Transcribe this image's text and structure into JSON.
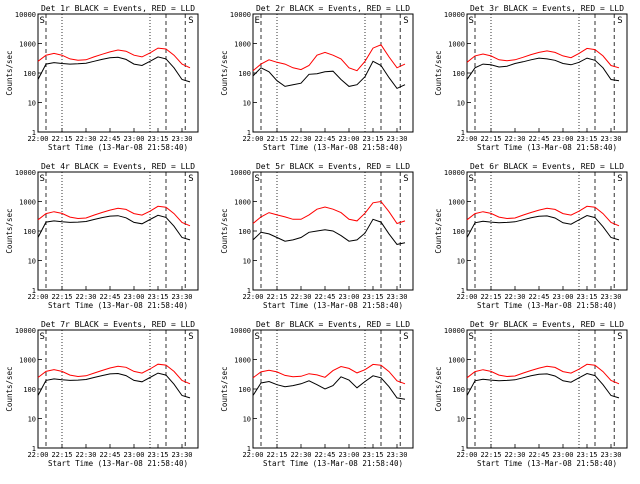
{
  "figure": {
    "xlabel": "Start Time (13-Mar-08 21:58:40)",
    "ylabel": "Counts/sec",
    "x_tick_labels": [
      "22:00",
      "22:15",
      "22:30",
      "22:45",
      "23:00",
      "23:15",
      "23:30"
    ],
    "y_tick_labels": [
      "1",
      "10",
      "100",
      "1000",
      "10000"
    ],
    "colors": {
      "events": "#000000",
      "lld": "#ff0000"
    }
  },
  "chart_data": [
    {
      "type": "line",
      "title": "Det 1r BLACK = Events, RED = LLD",
      "x": [
        0,
        5,
        10,
        15,
        20,
        25,
        30,
        35,
        40,
        45,
        50,
        55,
        60,
        65,
        70,
        75,
        80,
        85,
        90,
        95
      ],
      "series": [
        {
          "values": [
            60,
            200,
            225,
            210,
            200,
            205,
            215,
            250,
            290,
            330,
            340,
            290,
            200,
            180,
            250,
            350,
            300,
            150,
            60,
            50
          ]
        },
        {
          "values": [
            250,
            400,
            460,
            400,
            300,
            270,
            280,
            350,
            430,
            520,
            600,
            550,
            400,
            350,
            480,
            700,
            650,
            400,
            200,
            150
          ]
        }
      ],
      "xlim": [
        0,
        100
      ],
      "ylim": [
        1,
        10000
      ],
      "yscale": "log",
      "x_ticks": [
        0,
        15,
        30,
        45,
        60,
        75,
        90
      ],
      "y_ticks": [
        1,
        10,
        100,
        1000,
        10000
      ],
      "markers": [
        "S",
        "S"
      ],
      "marker_x": [
        0.3,
        93.3
      ]
    },
    {
      "type": "line",
      "title": "Det 2r BLACK = Events, RED = LLD",
      "x": [
        0,
        5,
        10,
        15,
        20,
        25,
        30,
        35,
        40,
        45,
        50,
        55,
        60,
        65,
        70,
        75,
        80,
        85,
        90,
        95
      ],
      "series": [
        {
          "values": [
            80,
            150,
            110,
            55,
            35,
            40,
            45,
            90,
            95,
            110,
            115,
            60,
            35,
            40,
            75,
            250,
            180,
            70,
            30,
            40
          ]
        },
        {
          "values": [
            120,
            200,
            280,
            230,
            200,
            150,
            130,
            180,
            400,
            500,
            400,
            300,
            150,
            120,
            250,
            700,
            900,
            350,
            150,
            200
          ]
        }
      ],
      "xlim": [
        0,
        100
      ],
      "ylim": [
        1,
        10000
      ],
      "yscale": "log",
      "x_ticks": [
        0,
        15,
        30,
        45,
        60,
        75,
        90
      ],
      "y_ticks": [
        1,
        10,
        100,
        1000,
        10000
      ],
      "markers": [
        "E",
        "S"
      ],
      "marker_x": [
        0.3,
        93.3
      ]
    },
    {
      "type": "line",
      "title": "Det 3r BLACK = Events, RED = LLD",
      "x": [
        0,
        5,
        10,
        15,
        20,
        25,
        30,
        35,
        40,
        45,
        50,
        55,
        60,
        65,
        70,
        75,
        80,
        85,
        90,
        95
      ],
      "series": [
        {
          "values": [
            60,
            150,
            200,
            190,
            160,
            170,
            210,
            240,
            280,
            320,
            300,
            270,
            210,
            190,
            230,
            320,
            270,
            150,
            60,
            55
          ]
        },
        {
          "values": [
            230,
            380,
            440,
            380,
            280,
            260,
            280,
            340,
            420,
            500,
            560,
            500,
            380,
            330,
            460,
            680,
            620,
            380,
            180,
            150
          ]
        }
      ],
      "xlim": [
        0,
        100
      ],
      "ylim": [
        1,
        10000
      ],
      "yscale": "log",
      "x_ticks": [
        0,
        15,
        30,
        45,
        60,
        75,
        90
      ],
      "y_ticks": [
        1,
        10,
        100,
        1000,
        10000
      ],
      "markers": [
        "S",
        "S"
      ],
      "marker_x": [
        0.3,
        93.3
      ]
    },
    {
      "type": "line",
      "title": "Det 4r BLACK = Events, RED = LLD",
      "x": [
        0,
        5,
        10,
        15,
        20,
        25,
        30,
        35,
        40,
        45,
        50,
        55,
        60,
        65,
        70,
        75,
        80,
        85,
        90,
        95
      ],
      "series": [
        {
          "values": [
            60,
            200,
            220,
            205,
            195,
            200,
            210,
            245,
            285,
            320,
            330,
            280,
            195,
            175,
            245,
            340,
            290,
            145,
            60,
            50
          ]
        },
        {
          "values": [
            240,
            390,
            450,
            395,
            295,
            265,
            275,
            345,
            425,
            510,
            590,
            540,
            390,
            345,
            470,
            690,
            640,
            390,
            195,
            150
          ]
        }
      ],
      "xlim": [
        0,
        100
      ],
      "ylim": [
        1,
        10000
      ],
      "yscale": "log",
      "x_ticks": [
        0,
        15,
        30,
        45,
        60,
        75,
        90
      ],
      "y_ticks": [
        1,
        10,
        100,
        1000,
        10000
      ],
      "markers": [
        "S",
        "S"
      ],
      "marker_x": [
        0.3,
        93.3
      ]
    },
    {
      "type": "line",
      "title": "Det 5r BLACK = Events, RED = LLD",
      "x": [
        0,
        5,
        10,
        15,
        20,
        25,
        30,
        35,
        40,
        45,
        50,
        55,
        60,
        65,
        70,
        75,
        80,
        85,
        90,
        95
      ],
      "series": [
        {
          "values": [
            50,
            90,
            80,
            60,
            45,
            50,
            60,
            90,
            100,
            110,
            100,
            70,
            45,
            50,
            85,
            250,
            200,
            80,
            35,
            40
          ]
        },
        {
          "values": [
            180,
            300,
            420,
            350,
            300,
            250,
            250,
            350,
            550,
            650,
            550,
            420,
            250,
            220,
            400,
            900,
            1000,
            450,
            180,
            220
          ]
        }
      ],
      "xlim": [
        0,
        100
      ],
      "ylim": [
        1,
        10000
      ],
      "yscale": "log",
      "x_ticks": [
        0,
        15,
        30,
        45,
        60,
        75,
        90
      ],
      "y_ticks": [
        1,
        10,
        100,
        1000,
        10000
      ],
      "markers": [
        "S",
        "S"
      ],
      "marker_x": [
        0.3,
        93.3
      ]
    },
    {
      "type": "line",
      "title": "Det 6r BLACK = Events, RED = LLD",
      "x": [
        0,
        5,
        10,
        15,
        20,
        25,
        30,
        35,
        40,
        45,
        50,
        55,
        60,
        65,
        70,
        75,
        80,
        85,
        90,
        95
      ],
      "series": [
        {
          "values": [
            60,
            190,
            215,
            200,
            190,
            195,
            205,
            240,
            280,
            315,
            325,
            275,
            190,
            170,
            240,
            335,
            285,
            140,
            60,
            50
          ]
        },
        {
          "values": [
            240,
            390,
            450,
            395,
            295,
            265,
            275,
            345,
            425,
            510,
            590,
            540,
            390,
            345,
            470,
            690,
            640,
            390,
            195,
            150
          ]
        }
      ],
      "xlim": [
        0,
        100
      ],
      "ylim": [
        1,
        10000
      ],
      "yscale": "log",
      "x_ticks": [
        0,
        15,
        30,
        45,
        60,
        75,
        90
      ],
      "y_ticks": [
        1,
        10,
        100,
        1000,
        10000
      ],
      "markers": [
        "S",
        "S"
      ],
      "marker_x": [
        0.3,
        93.3
      ]
    },
    {
      "type": "line",
      "title": "Det 7r BLACK = Events, RED = LLD",
      "x": [
        0,
        5,
        10,
        15,
        20,
        25,
        30,
        35,
        40,
        45,
        50,
        55,
        60,
        65,
        70,
        75,
        80,
        85,
        90,
        95
      ],
      "series": [
        {
          "values": [
            60,
            195,
            220,
            205,
            195,
            200,
            210,
            245,
            285,
            325,
            335,
            285,
            195,
            175,
            245,
            345,
            295,
            145,
            60,
            50
          ]
        },
        {
          "values": [
            245,
            395,
            455,
            395,
            295,
            265,
            280,
            345,
            425,
            515,
            595,
            545,
            395,
            345,
            475,
            695,
            645,
            395,
            195,
            150
          ]
        }
      ],
      "xlim": [
        0,
        100
      ],
      "ylim": [
        1,
        10000
      ],
      "yscale": "log",
      "x_ticks": [
        0,
        15,
        30,
        45,
        60,
        75,
        90
      ],
      "y_ticks": [
        1,
        10,
        100,
        1000,
        10000
      ],
      "markers": [
        "S",
        "S"
      ],
      "marker_x": [
        0.3,
        93.3
      ]
    },
    {
      "type": "line",
      "title": "Det 8r BLACK = Events, RED = LLD",
      "x": [
        0,
        5,
        10,
        15,
        20,
        25,
        30,
        35,
        40,
        45,
        50,
        55,
        60,
        65,
        70,
        75,
        80,
        85,
        90,
        95
      ],
      "series": [
        {
          "values": [
            60,
            160,
            180,
            140,
            120,
            130,
            150,
            190,
            140,
            100,
            130,
            260,
            200,
            110,
            180,
            280,
            240,
            120,
            50,
            45
          ]
        },
        {
          "values": [
            240,
            380,
            430,
            380,
            290,
            260,
            270,
            330,
            300,
            250,
            420,
            580,
            500,
            350,
            450,
            680,
            640,
            390,
            190,
            150
          ]
        }
      ],
      "xlim": [
        0,
        100
      ],
      "ylim": [
        1,
        10000
      ],
      "yscale": "log",
      "x_ticks": [
        0,
        15,
        30,
        45,
        60,
        75,
        90
      ],
      "y_ticks": [
        1,
        10,
        100,
        1000,
        10000
      ],
      "markers": [
        "S",
        "S"
      ],
      "marker_x": [
        0.3,
        93.3
      ]
    },
    {
      "type": "line",
      "title": "Det 9r BLACK = Events, RED = LLD",
      "x": [
        0,
        5,
        10,
        15,
        20,
        25,
        30,
        35,
        40,
        45,
        50,
        55,
        60,
        65,
        70,
        75,
        80,
        85,
        90,
        95
      ],
      "series": [
        {
          "values": [
            60,
            190,
            215,
            200,
            190,
            195,
            205,
            240,
            280,
            315,
            325,
            275,
            190,
            170,
            240,
            335,
            285,
            140,
            60,
            50
          ]
        },
        {
          "values": [
            240,
            390,
            450,
            395,
            295,
            265,
            275,
            345,
            425,
            510,
            590,
            540,
            390,
            345,
            470,
            690,
            640,
            390,
            195,
            150
          ]
        }
      ],
      "xlim": [
        0,
        100
      ],
      "ylim": [
        1,
        10000
      ],
      "yscale": "log",
      "x_ticks": [
        0,
        15,
        30,
        45,
        60,
        75,
        90
      ],
      "y_ticks": [
        1,
        10,
        100,
        1000,
        10000
      ],
      "markers": [
        "S",
        "S"
      ],
      "marker_x": [
        0.3,
        93.3
      ]
    }
  ]
}
